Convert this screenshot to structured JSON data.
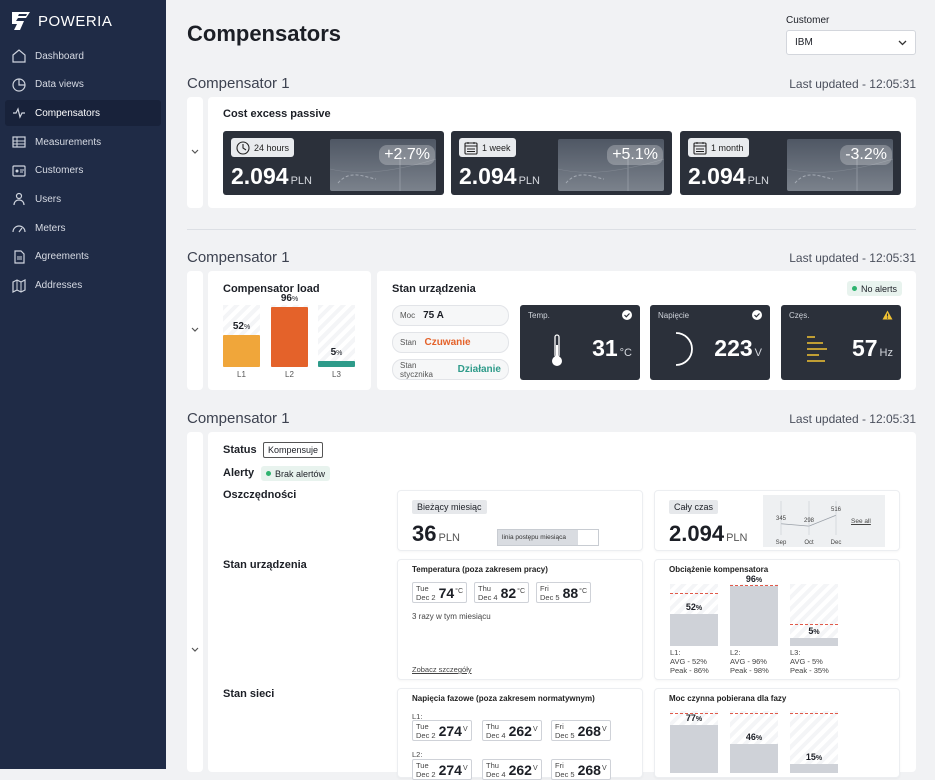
{
  "app": {
    "name": "POWERIA"
  },
  "nav": [
    {
      "label": "Dashboard",
      "icon": "home-icon"
    },
    {
      "label": "Data views",
      "icon": "chart-pie-icon"
    },
    {
      "label": "Compensators",
      "icon": "compensator-icon",
      "active": true
    },
    {
      "label": "Measurements",
      "icon": "table-icon"
    },
    {
      "label": "Customers",
      "icon": "id-card-icon"
    },
    {
      "label": "Users",
      "icon": "users-icon"
    },
    {
      "label": "Meters",
      "icon": "gauge-icon"
    },
    {
      "label": "Agreements",
      "icon": "document-icon"
    },
    {
      "label": "Addresses",
      "icon": "map-icon"
    }
  ],
  "page": {
    "title": "Compensators"
  },
  "customer": {
    "label": "Customer",
    "value": "IBM"
  },
  "sections": [
    {
      "title": "Compensator 1",
      "updated": "Last updated - 12:05:31"
    },
    {
      "title": "Compensator 1",
      "updated": "Last updated - 12:05:31"
    },
    {
      "title": "Compensator 1",
      "updated": "Last updated - 12:05:31"
    }
  ],
  "cost": {
    "title": "Cost excess passive",
    "cards": [
      {
        "period": "24 hours",
        "value": "2.094",
        "unit": "PLN",
        "change": "+2.7%"
      },
      {
        "period": "1 week",
        "value": "2.094",
        "unit": "PLN",
        "change": "+5.1%"
      },
      {
        "period": "1 month",
        "value": "2.094",
        "unit": "PLN",
        "change": "-3.2%"
      }
    ]
  },
  "load": {
    "title": "Compensator load",
    "bars": [
      {
        "label": "L1",
        "value": 52,
        "pct": "52",
        "color": "#f0a63a"
      },
      {
        "label": "L2",
        "value": 96,
        "pct": "96",
        "color": "#e4622a"
      },
      {
        "label": "L3",
        "value": 5,
        "pct": "5",
        "color": "#2e9b8a"
      }
    ],
    "pct_sign": "%"
  },
  "device": {
    "title": "Stan urządzenia",
    "alert": "No alerts",
    "chips": [
      {
        "key": "Moc",
        "value": "75 A",
        "color": "#1c1f26"
      },
      {
        "key": "Stan",
        "value": "Czuwanie",
        "color": "#e4622a"
      },
      {
        "key": "Stan stycznika",
        "value": "Działanie",
        "color": "#2e9b8a"
      }
    ],
    "sensors": [
      {
        "title": "Temp.",
        "value": "31",
        "unit": "°C",
        "icon": "thermometer-icon",
        "status": "ok"
      },
      {
        "title": "Napięcie",
        "value": "223",
        "unit": "V",
        "icon": "voltage-arc-icon",
        "status": "ok"
      },
      {
        "title": "Częs.",
        "value": "57",
        "unit": "Hz",
        "icon": "frequency-icon",
        "status": "warning"
      }
    ]
  },
  "detail": {
    "status_label": "Status",
    "status_value": "Kompensuje",
    "alerts_label": "Alerty",
    "alerts_value": "Brak alertów",
    "savings_label": "Oszczędności",
    "device_label": "Stan urządzenia",
    "network_label": "Stan sieci",
    "month": {
      "badge": "Bieżący miesiąc",
      "value": "36",
      "unit": "PLN",
      "progress_label": "linia postępu miesiąca",
      "progress": 0.8
    },
    "total": {
      "badge": "Cały czas",
      "value": "2.094",
      "unit": "PLN",
      "see_all": "See all",
      "chart": {
        "months": [
          "Sep",
          "Oct",
          "Dec"
        ],
        "values": [
          345,
          298,
          516
        ]
      }
    },
    "temperature": {
      "title": "Temperatura (poza zakresem pracy)",
      "items": [
        {
          "day": "Tue",
          "date": "Dec 2",
          "value": "74",
          "unit": "°C"
        },
        {
          "day": "Thu",
          "date": "Dec 4",
          "value": "82",
          "unit": "°C"
        },
        {
          "day": "Fri",
          "date": "Dec 5",
          "value": "88",
          "unit": "°C"
        }
      ],
      "note": "3 razy w tym miesiącu",
      "link": "Zobacz szczegóły"
    },
    "load": {
      "title": "Obciążenie kompensatora",
      "bars": [
        {
          "label": "L1:",
          "pct": "52",
          "avg": "AVG - 52%",
          "peak": "Peak - 86%",
          "value": 52,
          "peak_value": 86
        },
        {
          "label": "L2:",
          "pct": "96",
          "avg": "AVG - 96%",
          "peak": "Peak - 98%",
          "value": 96,
          "peak_value": 98
        },
        {
          "label": "L3:",
          "pct": "5",
          "avg": "AVG - 5%",
          "peak": "Peak - 35%",
          "value": 5,
          "peak_value": 35
        }
      ]
    },
    "phase_voltage": {
      "title": "Napięcia fazowe (poza zakresem normatywnym)",
      "l1_label": "L1:",
      "l2_label": "L2:",
      "items": [
        {
          "day": "Tue",
          "date": "Dec 2",
          "value": "274",
          "unit": "V"
        },
        {
          "day": "Thu",
          "date": "Dec 4",
          "value": "262",
          "unit": "V"
        },
        {
          "day": "Fri",
          "date": "Dec 5",
          "value": "268",
          "unit": "V"
        }
      ]
    },
    "active_power": {
      "title": "Moc czynna pobierana dla fazy",
      "bars": [
        {
          "pct": "77",
          "value": 77
        },
        {
          "pct": "46",
          "value": 46
        },
        {
          "pct": "15",
          "value": 15
        }
      ]
    }
  }
}
